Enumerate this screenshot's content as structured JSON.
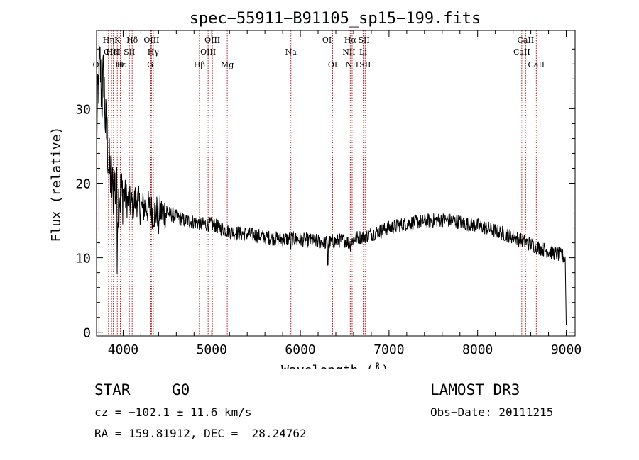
{
  "chart_data": {
    "type": "line",
    "title": "spec−55911−B91105_sp15−199.fits",
    "xlabel": "Wavelength (Å)",
    "ylabel": "Flux (relative)",
    "xlim": [
      3700,
      9100
    ],
    "ylim": [
      -0.5,
      40.5
    ],
    "x_ticks": [
      4000,
      5000,
      6000,
      7000,
      8000,
      9000
    ],
    "y_ticks": [
      0,
      10,
      20,
      30
    ],
    "grid": false,
    "series": [
      {
        "name": "flux",
        "x": [
          3700,
          3720,
          3740,
          3760,
          3780,
          3800,
          3820,
          3840,
          3860,
          3880,
          3900,
          3920,
          3940,
          3960,
          3980,
          4000,
          4050,
          4100,
          4150,
          4200,
          4250,
          4300,
          4350,
          4400,
          4500,
          4600,
          4700,
          4800,
          4900,
          5000,
          5100,
          5200,
          5300,
          5400,
          5500,
          5600,
          5700,
          5800,
          5900,
          6000,
          6100,
          6200,
          6300,
          6400,
          6500,
          6563,
          6600,
          6700,
          6800,
          6900,
          7000,
          7100,
          7200,
          7300,
          7400,
          7500,
          7600,
          7700,
          7800,
          7900,
          8000,
          8100,
          8200,
          8300,
          8400,
          8500,
          8600,
          8700,
          8800,
          8900,
          8960,
          8990,
          9000
        ],
        "y": [
          26,
          33,
          36,
          31,
          35,
          28,
          26,
          22,
          21,
          19,
          20,
          19,
          17,
          19,
          18,
          19,
          17.5,
          17,
          18,
          16.5,
          17,
          16.5,
          16,
          16.2,
          16,
          15.5,
          15,
          14.8,
          14.5,
          14.5,
          14,
          13.5,
          13.3,
          13.2,
          13,
          12.8,
          12.6,
          12.5,
          12.6,
          12.4,
          12.3,
          12.2,
          12,
          12.2,
          12.4,
          11.8,
          12.6,
          12.8,
          13.2,
          13.6,
          14,
          14.3,
          14.6,
          14.8,
          14.9,
          15,
          15.1,
          15,
          14.8,
          14.5,
          14.3,
          14,
          13.6,
          13.2,
          12.8,
          12.3,
          11.8,
          11.3,
          10.9,
          10.5,
          10.2,
          9.8,
          1
        ]
      }
    ],
    "lines": [
      {
        "name": "OII",
        "wavelength": 3727,
        "row": 2
      },
      {
        "name": "Hη",
        "wavelength": 3835,
        "row": 0
      },
      {
        "name": "OIII",
        "wavelength": 3869,
        "row": 1
      },
      {
        "name": "K",
        "wavelength": 3934,
        "row": 0
      },
      {
        "name": "Hε",
        "wavelength": 3970,
        "row": 2
      },
      {
        "name": "H",
        "wavelength": 3968,
        "row": 2
      },
      {
        "name": "HeI",
        "wavelength": 3889,
        "row": 1
      },
      {
        "name": "SII",
        "wavelength": 4070,
        "row": 1
      },
      {
        "name": "Hδ",
        "wavelength": 4102,
        "row": 0
      },
      {
        "name": "OIII",
        "wavelength": 4320,
        "row": 0
      },
      {
        "name": "Hγ",
        "wavelength": 4340,
        "row": 1
      },
      {
        "name": "G",
        "wavelength": 4305,
        "row": 2
      },
      {
        "name": "Hβ",
        "wavelength": 4861,
        "row": 2
      },
      {
        "name": "OIII",
        "wavelength": 5007,
        "row": 0
      },
      {
        "name": "OIII",
        "wavelength": 4959,
        "row": 1
      },
      {
        "name": "Mg",
        "wavelength": 5175,
        "row": 2
      },
      {
        "name": "Na",
        "wavelength": 5893,
        "row": 1
      },
      {
        "name": "OI",
        "wavelength": 6300,
        "row": 0
      },
      {
        "name": "OI",
        "wavelength": 6364,
        "row": 2
      },
      {
        "name": "Hα",
        "wavelength": 6563,
        "row": 0
      },
      {
        "name": "NII",
        "wavelength": 6548,
        "row": 1
      },
      {
        "name": "NII",
        "wavelength": 6584,
        "row": 2
      },
      {
        "name": "SII",
        "wavelength": 6717,
        "row": 0
      },
      {
        "name": "Li",
        "wavelength": 6708,
        "row": 1
      },
      {
        "name": "SII",
        "wavelength": 6731,
        "row": 2
      },
      {
        "name": "CaII",
        "wavelength": 8542,
        "row": 0
      },
      {
        "name": "CaII",
        "wavelength": 8498,
        "row": 1
      },
      {
        "name": "CaII",
        "wavelength": 8662,
        "row": 2
      }
    ]
  },
  "info": {
    "object_class": "STAR",
    "subclass": "G0",
    "survey": "LAMOST DR3",
    "redshift": "cz = −102.1 ± 11.6 km/s",
    "obs_date": "Obs−Date: 20111215",
    "coords": "RA = 159.81912, DEC =  28.24762"
  }
}
